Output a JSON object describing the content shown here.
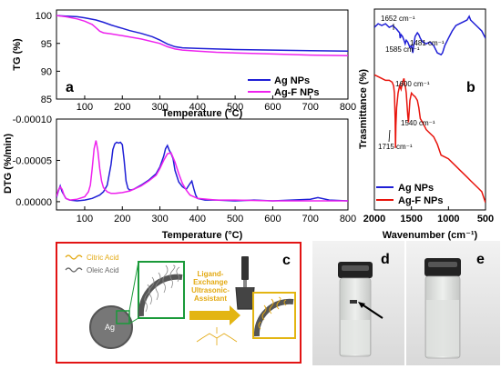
{
  "panel_letters": {
    "a": "a",
    "b": "b",
    "c": "c",
    "d": "d",
    "e": "e"
  },
  "legend": {
    "ag": "Ag NPs",
    "agf": "Ag-F NPs"
  },
  "colors": {
    "ag": "#1f1fd6",
    "agf": "#ee22ee",
    "ftir_agf": "#e8140c",
    "panel_c_border": "#e21414",
    "ligand_text": "#e3a912",
    "arrow_gold": "#e3b512"
  },
  "panel_c": {
    "citric_acid": "Citric Acid",
    "oleic_acid": "Oleic Acid",
    "core_label": "Ag",
    "process_lines": [
      "Ligand-",
      "Exchange",
      "Ultrasonic-",
      "Assistant"
    ]
  },
  "chart_data": [
    {
      "id": "tg",
      "type": "line",
      "ylabel": "TG (%)",
      "xlabel": "Temperature (°C)",
      "xlim": [
        25,
        800
      ],
      "ylim": [
        85,
        101
      ],
      "xticks": [
        100,
        200,
        300,
        400,
        500,
        600,
        700,
        800
      ],
      "yticks": [
        85,
        90,
        95,
        100
      ],
      "legend_position": "inside-lower-right",
      "series": [
        {
          "name": "Ag NPs",
          "color": "ag",
          "x": [
            25,
            50,
            80,
            100,
            130,
            150,
            170,
            190,
            200,
            220,
            250,
            280,
            300,
            320,
            340,
            360,
            400,
            450,
            500,
            600,
            700,
            800
          ],
          "y": [
            100,
            99.9,
            99.8,
            99.6,
            99.2,
            98.8,
            98.3,
            97.9,
            97.7,
            97.3,
            96.8,
            96.2,
            95.6,
            94.9,
            94.4,
            94.2,
            94.1,
            94.0,
            93.9,
            93.8,
            93.7,
            93.6
          ]
        },
        {
          "name": "Ag-F NPs",
          "color": "agf",
          "x": [
            25,
            50,
            80,
            100,
            120,
            130,
            140,
            150,
            170,
            200,
            250,
            300,
            320,
            340,
            360,
            400,
            450,
            500,
            600,
            700,
            800
          ],
          "y": [
            100,
            99.8,
            99.4,
            99.0,
            98.4,
            97.8,
            97.2,
            96.9,
            96.7,
            96.4,
            95.8,
            95.0,
            94.4,
            94.0,
            93.8,
            93.6,
            93.4,
            93.3,
            93.1,
            92.9,
            92.8
          ]
        }
      ]
    },
    {
      "id": "dtg",
      "type": "line",
      "ylabel": "DTG (%/min)",
      "xlabel": "Temperature (°C)",
      "xlim": [
        25,
        800
      ],
      "ylim": [
        -1e-05,
        0.0001
      ],
      "reversed_y": true,
      "xticks": [
        100,
        200,
        300,
        400,
        500,
        600,
        700,
        800
      ],
      "yticks": [
        0.0,
        5e-05,
        0.0001
      ],
      "ytick_labels": [
        "0.00000",
        "-0.00005",
        "-0.00010"
      ],
      "series": [
        {
          "name": "Ag NPs",
          "color": "ag",
          "x": [
            25,
            30,
            35,
            40,
            50,
            60,
            80,
            100,
            120,
            140,
            150,
            160,
            170,
            175,
            180,
            185,
            190,
            195,
            200,
            205,
            210,
            215,
            220,
            230,
            250,
            270,
            290,
            300,
            310,
            315,
            320,
            325,
            330,
            335,
            340,
            350,
            360,
            370,
            380,
            385,
            390,
            395,
            400,
            420,
            450,
            500,
            550,
            600,
            650,
            700,
            720,
            750,
            800
          ],
          "y": [
            5e-06,
            1.3e-05,
            1.9e-05,
            1.2e-05,
            4e-06,
            2e-06,
            1e-06,
            2e-06,
            4e-06,
            8e-06,
            1.2e-05,
            2e-05,
            4.5e-05,
            6.3e-05,
            7e-05,
            7.2e-05,
            7.1e-05,
            7.2e-05,
            6.9e-05,
            5e-05,
            2.5e-05,
            1.6e-05,
            1.4e-05,
            1.5e-05,
            2e-05,
            2.6e-05,
            3.4e-05,
            4.2e-05,
            5.5e-05,
            6.4e-05,
            6.8e-05,
            6.2e-05,
            5.8e-05,
            5.2e-05,
            3.8e-05,
            2.4e-05,
            1.8e-05,
            1.5e-05,
            2.2e-05,
            2.5e-05,
            1.6e-05,
            8e-06,
            4e-06,
            2e-06,
            2e-06,
            1e-06,
            2e-06,
            1e-06,
            2e-06,
            3e-06,
            5e-06,
            2e-06,
            1e-06
          ]
        },
        {
          "name": "Ag-F NPs",
          "color": "agf",
          "x": [
            25,
            30,
            35,
            40,
            45,
            50,
            60,
            80,
            100,
            110,
            115,
            120,
            125,
            130,
            135,
            140,
            145,
            150,
            160,
            170,
            180,
            200,
            220,
            250,
            270,
            290,
            300,
            310,
            320,
            330,
            340,
            350,
            360,
            370,
            380,
            400,
            450,
            500,
            600,
            700,
            800
          ],
          "y": [
            6e-06,
            1.4e-05,
            1.8e-05,
            1.5e-05,
            8e-06,
            4e-06,
            2e-06,
            3e-06,
            6e-06,
            1.2e-05,
            2e-05,
            4e-05,
            6.4e-05,
            7.4e-05,
            6.2e-05,
            4e-05,
            2.5e-05,
            1.7e-05,
            1.2e-05,
            1e-05,
            1e-05,
            1.1e-05,
            1.3e-05,
            1.9e-05,
            2.5e-05,
            3.2e-05,
            4e-05,
            5e-05,
            5.8e-05,
            5.9e-05,
            4.8e-05,
            3.4e-05,
            2.2e-05,
            1.4e-05,
            8e-06,
            4e-06,
            2e-06,
            2e-06,
            1e-06,
            1e-06,
            1e-06
          ]
        }
      ]
    },
    {
      "id": "ftir",
      "type": "line",
      "ylabel": "Trasmittance (%)",
      "xlabel": "Wavenumber (cm⁻¹)",
      "xlim": [
        2000,
        500
      ],
      "reversed_x": true,
      "xticks": [
        2000,
        1500,
        1000,
        500
      ],
      "legend_position": "lower-left",
      "series": [
        {
          "name": "Ag NPs",
          "color": "ag",
          "x": [
            2000,
            1950,
            1900,
            1850,
            1800,
            1750,
            1700,
            1680,
            1660,
            1652,
            1640,
            1620,
            1600,
            1585,
            1570,
            1550,
            1520,
            1500,
            1490,
            1481,
            1470,
            1450,
            1420,
            1400,
            1380,
            1350,
            1300,
            1250,
            1200,
            1150,
            1100,
            1080,
            1050,
            1000,
            950,
            900,
            850,
            800,
            750,
            720,
            700,
            650,
            600,
            550,
            500
          ],
          "y": [
            95,
            96,
            95.5,
            96,
            95,
            95.5,
            94.5,
            94,
            93.5,
            92,
            93,
            92.5,
            91.5,
            90.5,
            91.5,
            91,
            89.5,
            90,
            89,
            88,
            90,
            92.5,
            93.5,
            93,
            92,
            91,
            90.5,
            91,
            90,
            88,
            87.5,
            88,
            90,
            92,
            94,
            95.5,
            96,
            96.5,
            97,
            98,
            97,
            96,
            95,
            94,
            92
          ]
        },
        {
          "name": "Ag-F NPs",
          "color": "ftir_agf",
          "x": [
            2000,
            1950,
            1900,
            1850,
            1800,
            1760,
            1740,
            1730,
            1720,
            1715,
            1710,
            1700,
            1690,
            1680,
            1660,
            1640,
            1620,
            1600,
            1590,
            1580,
            1570,
            1560,
            1550,
            1540,
            1530,
            1520,
            1500,
            1480,
            1450,
            1420,
            1400,
            1380,
            1350,
            1300,
            1250,
            1200,
            1150,
            1100,
            1050,
            1000,
            950,
            900,
            850,
            800,
            750,
            700,
            650,
            600,
            550,
            500
          ],
          "y": [
            82,
            81.5,
            81,
            80.5,
            80.5,
            80,
            79,
            77,
            70,
            62,
            68,
            73,
            75,
            77,
            79,
            78,
            80,
            81,
            79.5,
            78.5,
            77,
            74,
            71,
            69,
            72,
            75,
            77,
            76.5,
            76,
            75,
            73,
            70,
            69,
            67,
            66,
            65,
            63,
            60,
            59.5,
            59,
            58,
            57,
            56,
            55,
            54,
            53,
            52,
            51,
            50,
            47
          ]
        }
      ],
      "annotations": [
        {
          "text": "1652 cm⁻¹",
          "color": "ag"
        },
        {
          "text": "1585 cm⁻¹",
          "color": "ag"
        },
        {
          "text": "1481 cm⁻¹",
          "color": "ag"
        },
        {
          "text": "1600 cm⁻¹",
          "color": "ftir_agf"
        },
        {
          "text": "1540 cm⁻¹",
          "color": "ftir_agf"
        },
        {
          "text": "1715 cm⁻¹",
          "color": "ftir_agf"
        }
      ]
    }
  ]
}
